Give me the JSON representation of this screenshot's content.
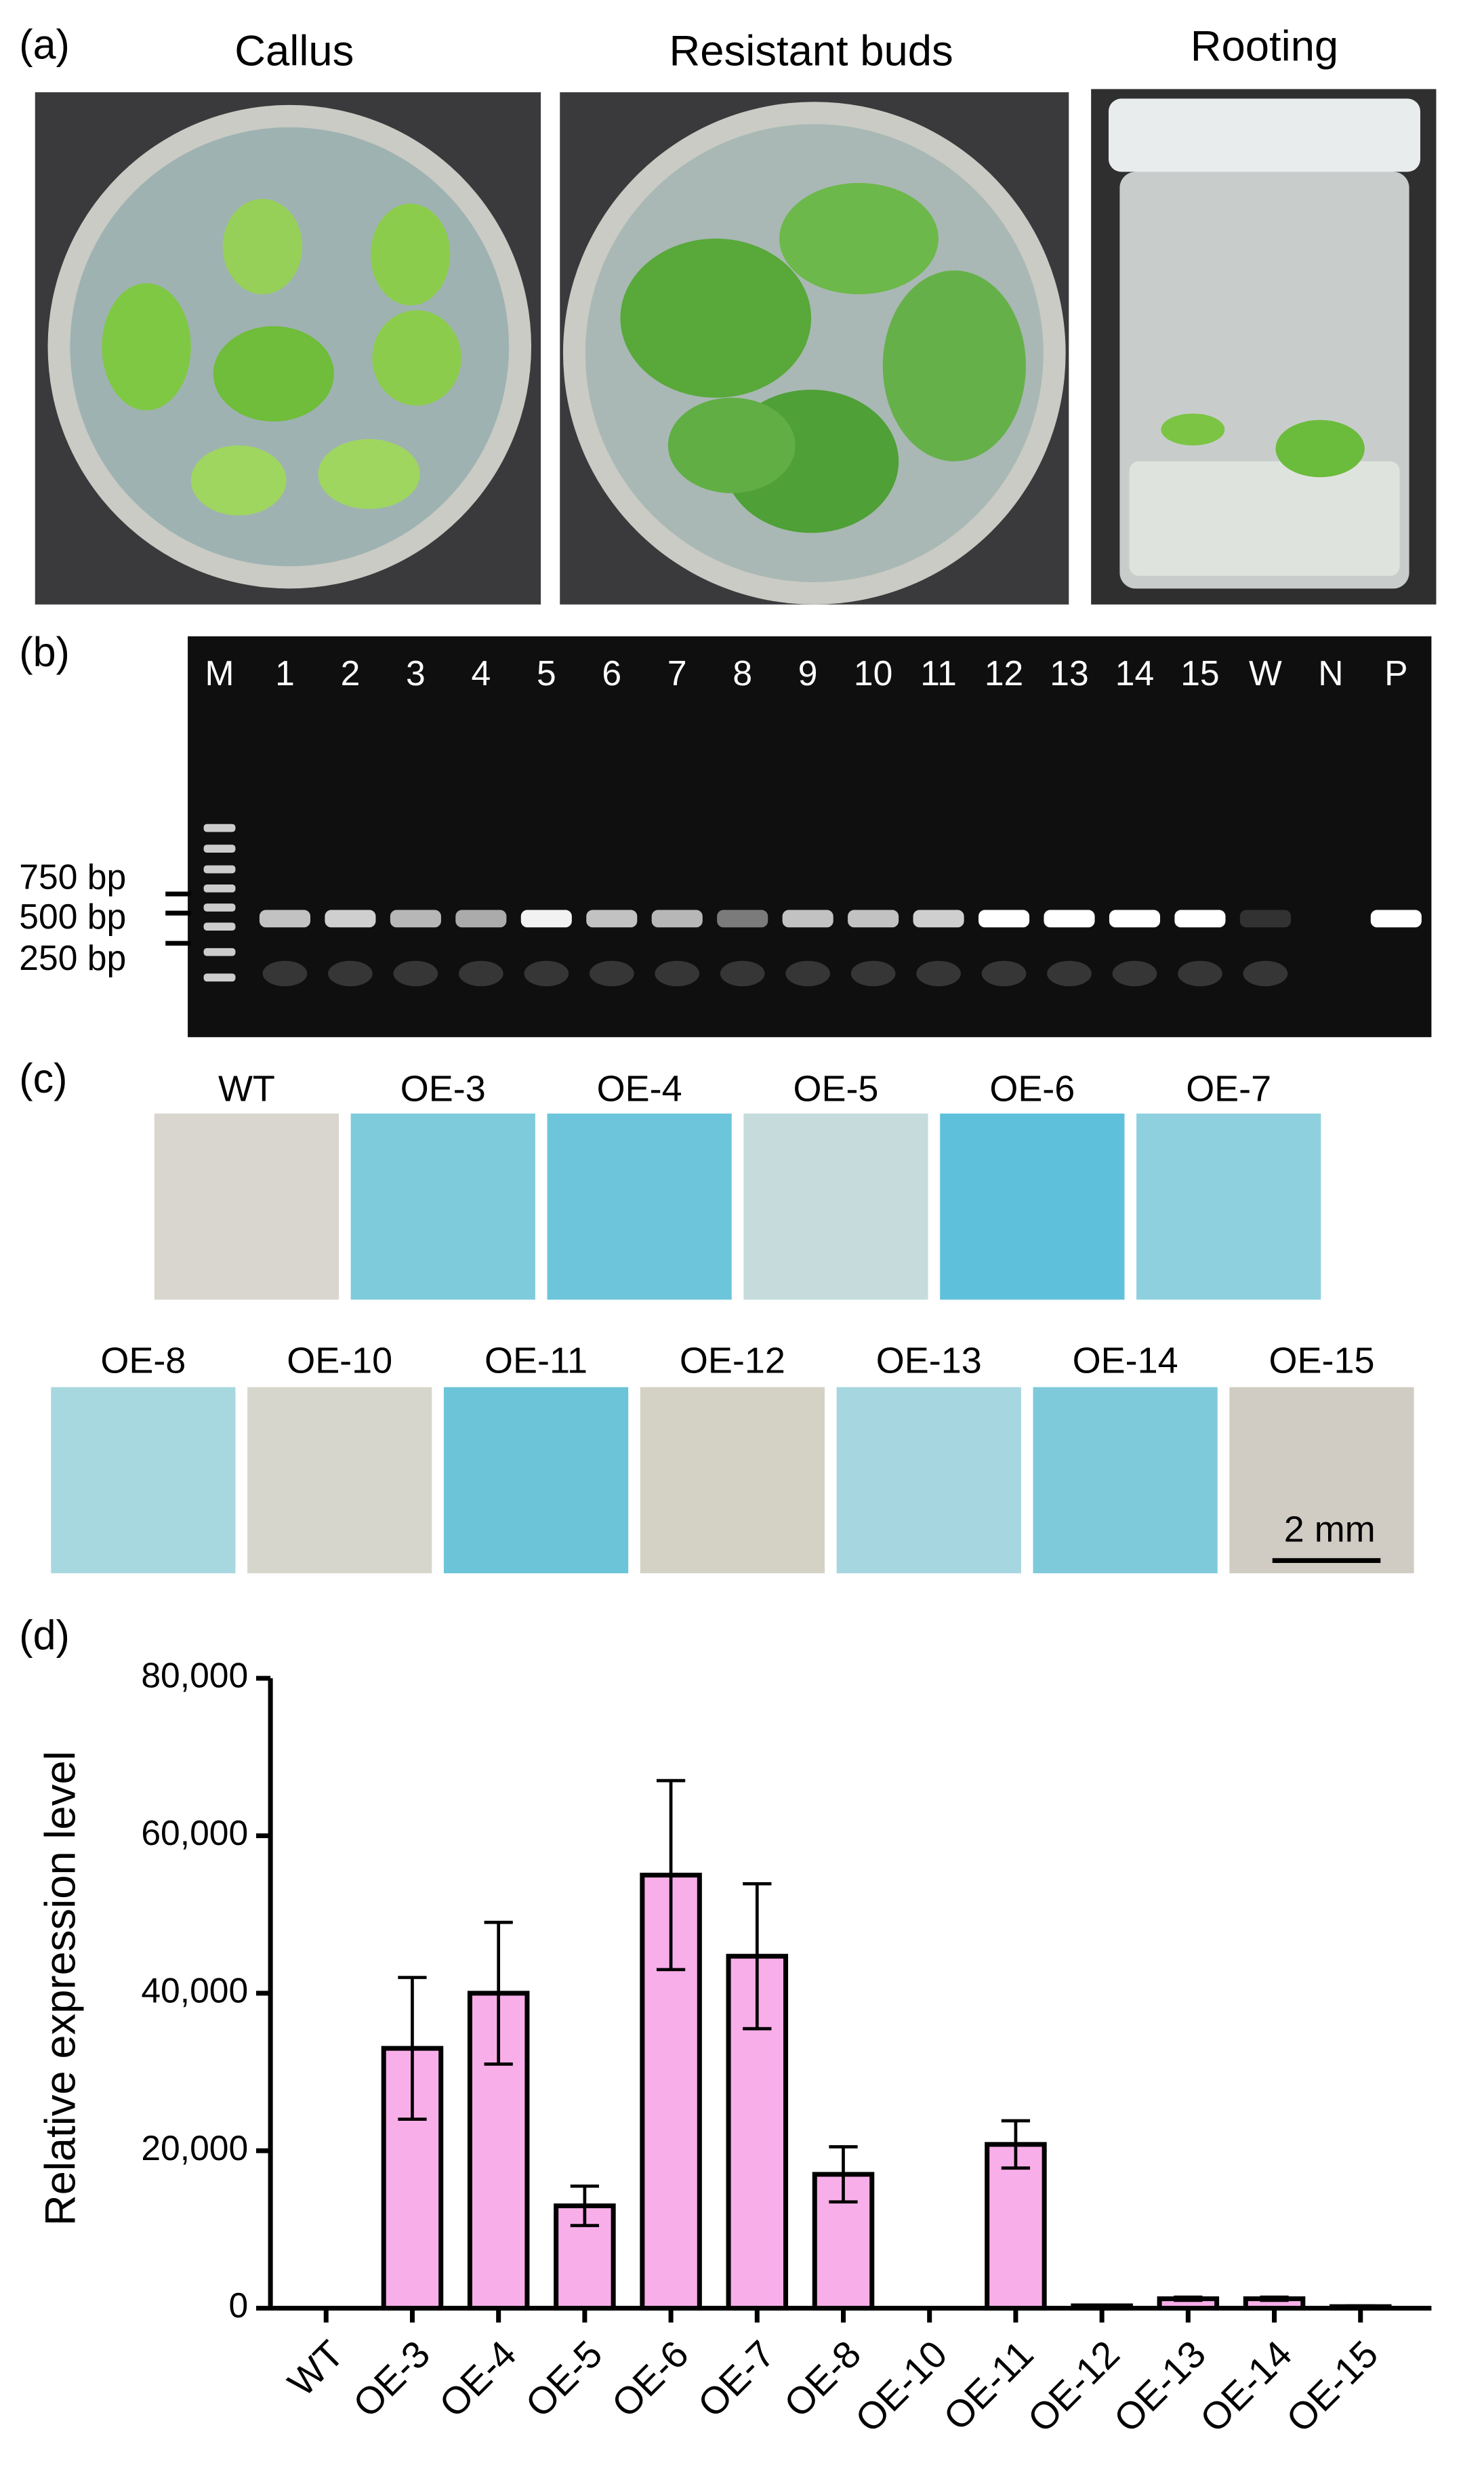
{
  "panel_a": {
    "label": "(a)",
    "captions": [
      "Callus",
      "Resistant buds",
      "Rooting"
    ]
  },
  "panel_b": {
    "label": "(b)",
    "lanes": [
      "M",
      "1",
      "2",
      "3",
      "4",
      "5",
      "6",
      "7",
      "8",
      "9",
      "10",
      "11",
      "12",
      "13",
      "14",
      "15",
      "W",
      "N",
      "P"
    ],
    "markers": [
      "750 bp",
      "500 bp",
      "250 bp"
    ]
  },
  "panel_c": {
    "label": "(c)",
    "row1": [
      "WT",
      "OE-3",
      "OE-4",
      "OE-5",
      "OE-6",
      "OE-7"
    ],
    "row2": [
      "OE-8",
      "OE-10",
      "OE-11",
      "OE-12",
      "OE-13",
      "OE-14",
      "OE-15"
    ],
    "scale_bar": "2 mm"
  },
  "chart_data": {
    "type": "bar",
    "panel_label": "(d)",
    "y_label": "Relative expression level",
    "categories": [
      "WT",
      "OE-3",
      "OE-4",
      "OE-5",
      "OE-6",
      "OE-7",
      "OE-8",
      "OE-10",
      "OE-11",
      "OE-12",
      "OE-13",
      "OE-14",
      "OE-15"
    ],
    "values": [
      0,
      33000,
      40000,
      13000,
      55000,
      44700,
      17000,
      0,
      20800,
      300,
      1200,
      1200,
      200
    ],
    "errors": [
      0,
      9000,
      9000,
      2500,
      12000,
      9200,
      3500,
      0,
      3000,
      100,
      200,
      200,
      100
    ],
    "color": "#f8aee8",
    "ylim": [
      0,
      80000
    ],
    "yticks": [
      0,
      {
        "value": 20000,
        "label": "20,000"
      },
      {
        "value": 40000,
        "label": "40,000"
      },
      {
        "value": 60000,
        "label": "60,000"
      },
      {
        "value": 80000,
        "label": "80,000"
      }
    ]
  }
}
